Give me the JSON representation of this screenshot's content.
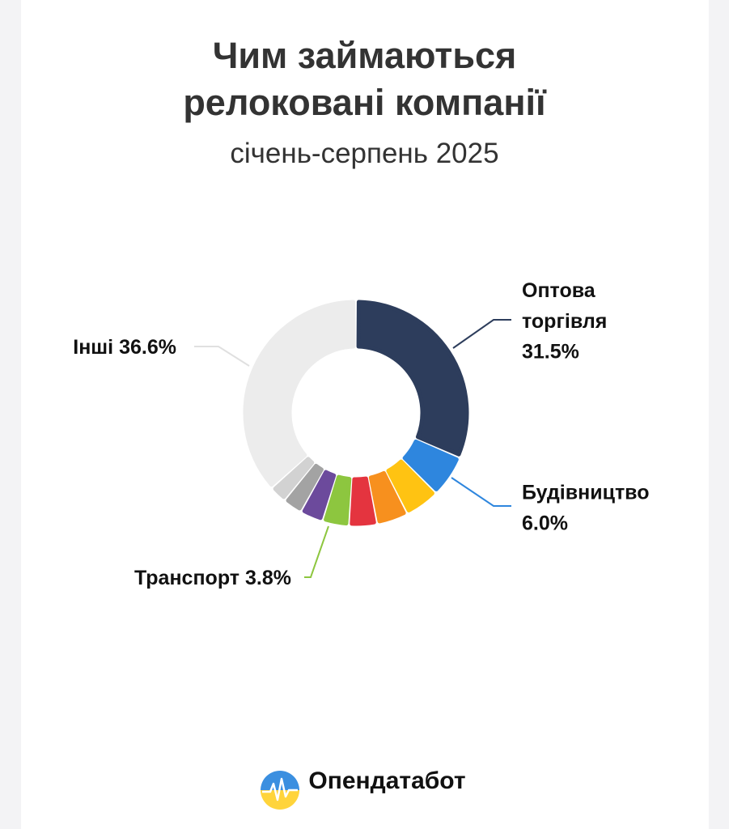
{
  "chart_data": {
    "type": "donut",
    "title": "Чим займаються релоковані компанії",
    "subtitle": "січень-серпень 2025",
    "categories": [
      "Оптова торгівля",
      "Будівництво",
      null,
      null,
      null,
      "Транспорт",
      null,
      null,
      null,
      "Інші"
    ],
    "values": [
      31.5,
      6.0,
      5.0,
      4.5,
      4.0,
      3.8,
      3.3,
      2.8,
      2.5,
      36.6
    ],
    "value_labels": [
      "31.5%",
      "6.0%",
      null,
      null,
      null,
      "3.8%",
      null,
      null,
      null,
      "36.6%"
    ],
    "colors": [
      "#2d3d5c",
      "#2e86de",
      "#ffc312",
      "#f7901e",
      "#e4343f",
      "#8dc63f",
      "#6c4a9c",
      "#a3a3a3",
      "#d2d2d2",
      "#ececec"
    ]
  },
  "footer": "Опендатабот"
}
